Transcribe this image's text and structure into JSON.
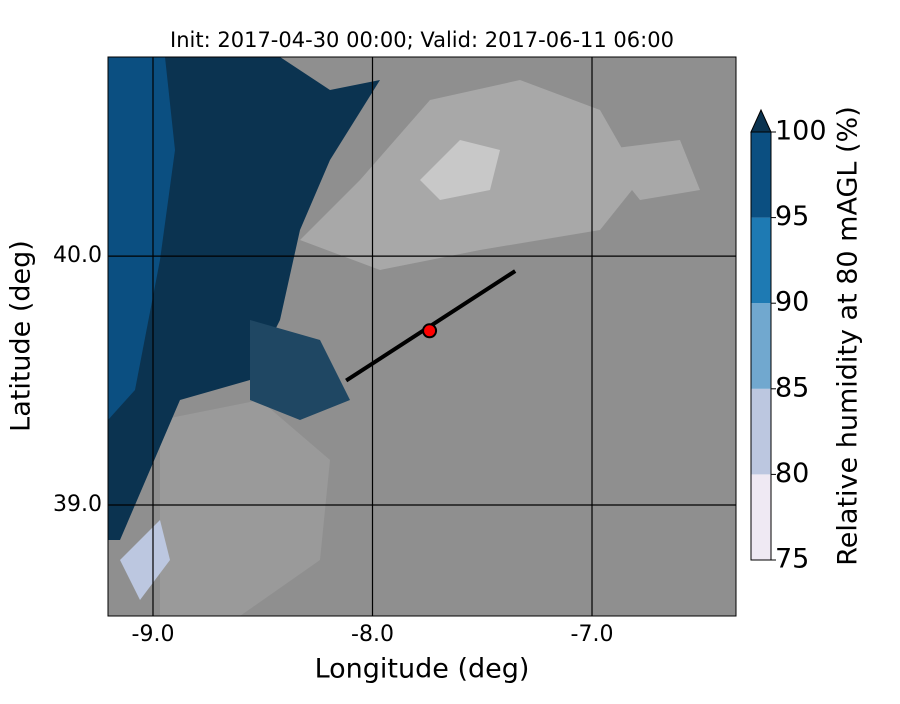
{
  "chart_data": {
    "type": "contour-map",
    "title": "Init: 2017-04-30 00:00; Valid: 2017-06-11 06:00",
    "x_label": "Longitude (deg)",
    "y_label": "Latitude (deg)",
    "xlim": [
      -9.205,
      -6.344
    ],
    "ylim": [
      38.554,
      40.8
    ],
    "xticks": [
      {
        "value": -9,
        "label": "-9.0"
      },
      {
        "value": -8,
        "label": "-8.0"
      },
      {
        "value": -7,
        "label": "-7.0"
      }
    ],
    "yticks": [
      {
        "value": 39,
        "label": "39.0"
      },
      {
        "value": 40,
        "label": "40.0"
      }
    ],
    "grid": true,
    "transect": {
      "x": [
        -8.12,
        -7.35
      ],
      "y": [
        39.5,
        39.94
      ]
    },
    "point": {
      "x": -7.74,
      "y": 39.7,
      "color": "#ff0000"
    },
    "colorbar": {
      "label": "Relative humidity at 80 mAGL (%)",
      "extend": "max",
      "levels": [
        75,
        80,
        85,
        90,
        95,
        100
      ],
      "colors": [
        "#efe9f3",
        "#bcc7e0",
        "#71a8cf",
        "#1e7ab3",
        "#0b4f81"
      ]
    }
  }
}
